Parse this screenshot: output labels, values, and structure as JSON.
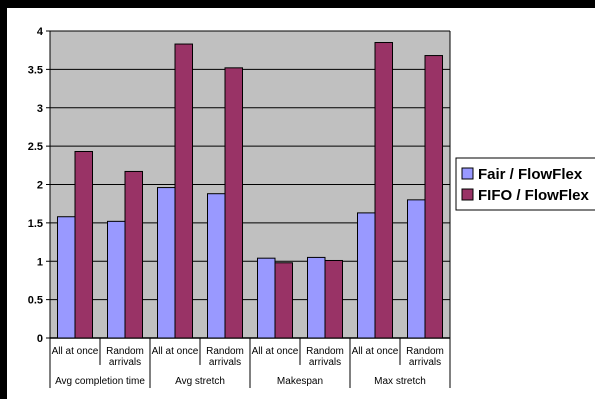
{
  "chart_data": {
    "type": "bar",
    "title": "",
    "xlabel": "",
    "ylabel": "",
    "ylim": [
      0,
      4
    ],
    "yticks": [
      "0",
      "0.5",
      "1",
      "1.5",
      "2",
      "2.5",
      "3",
      "3.5",
      "4"
    ],
    "grid": true,
    "legend_position": "right",
    "groups": [
      {
        "label": "Avg completion time",
        "categories": [
          "All at once",
          "Random arrivals"
        ]
      },
      {
        "label": "Avg stretch",
        "categories": [
          "All at once",
          "Random arrivals"
        ]
      },
      {
        "label": "Makespan",
        "categories": [
          "All at once",
          "Random arrivals"
        ]
      },
      {
        "label": "Max stretch",
        "categories": [
          "All at once",
          "Random arrivals"
        ]
      }
    ],
    "category_lines": [
      [
        "All at once"
      ],
      [
        "Random",
        "arrivals"
      ],
      [
        "All at once"
      ],
      [
        "Random",
        "arrivals"
      ],
      [
        "All at once"
      ],
      [
        "Random",
        "arrivals"
      ],
      [
        "All at once"
      ],
      [
        "Random",
        "arrivals"
      ]
    ],
    "series": [
      {
        "name": "Fair / FlowFlex",
        "color": "#9999ff",
        "values": [
          1.58,
          1.52,
          1.96,
          1.88,
          1.04,
          1.05,
          1.63,
          1.8
        ]
      },
      {
        "name": "FIFO / FlowFlex",
        "color": "#993366",
        "values": [
          2.43,
          2.17,
          3.83,
          3.52,
          0.98,
          1.01,
          3.85,
          3.68
        ]
      }
    ],
    "plot_background": "#c0c0c0"
  }
}
